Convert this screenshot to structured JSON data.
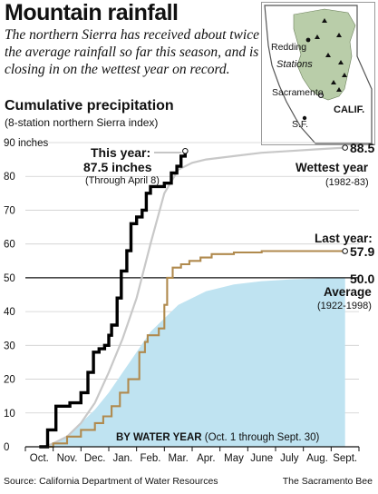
{
  "headline": "Mountain rainfall",
  "deck": "The northern Sierra has received about twice the average rainfall so far this season, and is closing in on the wettest year on record.",
  "chart_title": "Cumulative precipitation",
  "chart_subtitle": "(8-station northern Sierra index)",
  "footer": {
    "source": "Source: California Department of Water Resources",
    "credit": "The Sacramento Bee"
  },
  "map": {
    "labels": {
      "redding": "Redding",
      "stations": "Stations",
      "sacramento": "Sacramento",
      "sf": "S.F.",
      "state": "CALIF."
    },
    "colors": {
      "land": "#ffffff",
      "basin": "#b9cda9",
      "outline": "#555555"
    }
  },
  "annotations": {
    "this_year_label": "This year:",
    "this_year_value": "87.5 inches",
    "this_year_note": "(Through April 8)",
    "wettest_value": "88.5",
    "wettest_label": "Wettest year",
    "wettest_years": "(1982-83)",
    "last_year_label": "Last year:",
    "last_year_value": "57.9",
    "average_value": "50.0",
    "average_label": "Average",
    "average_years": "(1922-1998)",
    "axis_title_bold": "BY WATER YEAR",
    "axis_title_rest": " (Oct. 1 through Sept. 30)"
  },
  "chart_data": {
    "type": "line",
    "x_categories": [
      "Oct.",
      "Nov.",
      "Dec.",
      "Jan.",
      "Feb.",
      "Mar.",
      "Apr.",
      "May",
      "June",
      "July",
      "Aug.",
      "Sept."
    ],
    "ylim": [
      0,
      90
    ],
    "yticks": [
      0,
      10,
      20,
      30,
      40,
      50,
      60,
      70,
      80,
      90
    ],
    "ytick_labels": [
      "0",
      "10",
      "20",
      "30",
      "40",
      "50",
      "60",
      "70",
      "80",
      "90 inches"
    ],
    "average_line": 50.0,
    "series": [
      {
        "name": "This year",
        "color": "#000000",
        "style": "step",
        "points": [
          [
            0,
            0
          ],
          [
            0.3,
            0
          ],
          [
            0.3,
            5
          ],
          [
            0.6,
            5
          ],
          [
            0.6,
            12
          ],
          [
            1.1,
            12
          ],
          [
            1.1,
            13
          ],
          [
            1.5,
            13
          ],
          [
            1.5,
            16
          ],
          [
            1.75,
            16
          ],
          [
            1.75,
            22
          ],
          [
            1.95,
            22
          ],
          [
            1.95,
            28
          ],
          [
            2.15,
            28
          ],
          [
            2.15,
            29
          ],
          [
            2.35,
            29
          ],
          [
            2.35,
            30
          ],
          [
            2.5,
            30
          ],
          [
            2.5,
            33
          ],
          [
            2.6,
            33
          ],
          [
            2.6,
            36
          ],
          [
            2.8,
            36
          ],
          [
            2.8,
            44
          ],
          [
            2.95,
            44
          ],
          [
            2.95,
            52
          ],
          [
            3.15,
            52
          ],
          [
            3.15,
            58
          ],
          [
            3.3,
            58
          ],
          [
            3.3,
            66
          ],
          [
            3.5,
            66
          ],
          [
            3.5,
            68
          ],
          [
            3.7,
            68
          ],
          [
            3.7,
            70
          ],
          [
            3.85,
            70
          ],
          [
            3.85,
            75
          ],
          [
            4.0,
            75
          ],
          [
            4.0,
            77
          ],
          [
            4.5,
            77
          ],
          [
            4.5,
            78
          ],
          [
            4.75,
            78
          ],
          [
            4.75,
            81
          ],
          [
            4.95,
            81
          ],
          [
            4.95,
            83
          ],
          [
            5.1,
            83
          ],
          [
            5.1,
            86
          ],
          [
            5.25,
            86
          ],
          [
            5.25,
            87.5
          ]
        ]
      },
      {
        "name": "Wettest year",
        "color": "#c8c8c8",
        "style": "line",
        "points": [
          [
            0.2,
            0
          ],
          [
            0.5,
            1
          ],
          [
            1,
            3
          ],
          [
            1.5,
            7
          ],
          [
            2,
            13
          ],
          [
            2.5,
            22
          ],
          [
            3,
            32
          ],
          [
            3.5,
            44
          ],
          [
            4,
            60
          ],
          [
            4.5,
            75
          ],
          [
            5,
            82
          ],
          [
            5.5,
            84
          ],
          [
            6,
            85
          ],
          [
            7,
            86
          ],
          [
            8,
            87
          ],
          [
            9,
            87.5
          ],
          [
            10,
            88
          ],
          [
            11,
            88.5
          ]
        ]
      },
      {
        "name": "Last year",
        "color": "#b08a4e",
        "style": "step",
        "points": [
          [
            0,
            0
          ],
          [
            0.5,
            0
          ],
          [
            0.5,
            1
          ],
          [
            1.0,
            1
          ],
          [
            1.0,
            3
          ],
          [
            1.5,
            3
          ],
          [
            1.5,
            5
          ],
          [
            2.0,
            5
          ],
          [
            2.0,
            7
          ],
          [
            2.3,
            7
          ],
          [
            2.3,
            9
          ],
          [
            2.6,
            9
          ],
          [
            2.6,
            12
          ],
          [
            2.9,
            12
          ],
          [
            2.9,
            16
          ],
          [
            3.2,
            16
          ],
          [
            3.2,
            20
          ],
          [
            3.6,
            20
          ],
          [
            3.6,
            28
          ],
          [
            3.8,
            28
          ],
          [
            3.8,
            31
          ],
          [
            3.9,
            31
          ],
          [
            3.9,
            33
          ],
          [
            4.3,
            33
          ],
          [
            4.3,
            35
          ],
          [
            4.5,
            35
          ],
          [
            4.5,
            42
          ],
          [
            4.6,
            42
          ],
          [
            4.6,
            50
          ],
          [
            4.8,
            50
          ],
          [
            4.8,
            53
          ],
          [
            5.1,
            53
          ],
          [
            5.1,
            54
          ],
          [
            5.4,
            54
          ],
          [
            5.4,
            55
          ],
          [
            5.8,
            55
          ],
          [
            5.8,
            56
          ],
          [
            6.2,
            56
          ],
          [
            6.2,
            57
          ],
          [
            7,
            57
          ],
          [
            7,
            57.5
          ],
          [
            8,
            57.5
          ],
          [
            8,
            57.9
          ],
          [
            11,
            57.9
          ]
        ]
      },
      {
        "name": "Average",
        "color": "#bfe3f1",
        "style": "area",
        "points": [
          [
            0,
            0
          ],
          [
            0.5,
            1
          ],
          [
            1,
            3
          ],
          [
            1.5,
            7
          ],
          [
            2,
            11
          ],
          [
            2.5,
            16
          ],
          [
            3,
            22
          ],
          [
            3.5,
            28
          ],
          [
            4,
            34
          ],
          [
            4.5,
            38
          ],
          [
            5,
            42
          ],
          [
            5.5,
            44
          ],
          [
            6,
            46
          ],
          [
            7,
            48
          ],
          [
            8,
            49
          ],
          [
            9,
            49.5
          ],
          [
            10,
            49.8
          ],
          [
            11,
            50
          ]
        ]
      }
    ]
  }
}
